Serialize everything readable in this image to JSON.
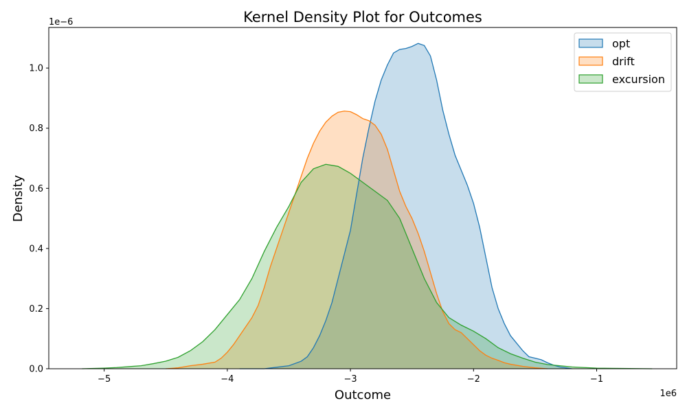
{
  "chart_data": {
    "type": "area",
    "title": "Kernel Density Plot for Outcomes",
    "xlabel": "Outcome",
    "ylabel": "Density",
    "x_offset_text": "1e6",
    "y_offset_text": "1e−6",
    "xlim": [
      -5.45,
      -0.35
    ],
    "ylim": [
      0,
      1.135
    ],
    "xticks": [
      -5,
      -4,
      -3,
      -2,
      -1
    ],
    "xtick_labels": [
      "−5",
      "−4",
      "−3",
      "−2",
      "−1"
    ],
    "yticks": [
      0.0,
      0.2,
      0.4,
      0.6,
      0.8,
      1.0
    ],
    "ytick_labels": [
      "0.0",
      "0.2",
      "0.4",
      "0.6",
      "0.8",
      "1.0"
    ],
    "grid": false,
    "legend_position": "top-right",
    "series": [
      {
        "name": "opt",
        "color": "#1f77b4",
        "points": [
          [
            -3.9,
            0.0
          ],
          [
            -3.7,
            0.0
          ],
          [
            -3.6,
            0.005
          ],
          [
            -3.5,
            0.01
          ],
          [
            -3.4,
            0.025
          ],
          [
            -3.35,
            0.04
          ],
          [
            -3.3,
            0.07
          ],
          [
            -3.25,
            0.11
          ],
          [
            -3.2,
            0.16
          ],
          [
            -3.15,
            0.22
          ],
          [
            -3.1,
            0.3
          ],
          [
            -3.05,
            0.38
          ],
          [
            -3.0,
            0.46
          ],
          [
            -2.95,
            0.58
          ],
          [
            -2.9,
            0.7
          ],
          [
            -2.85,
            0.8
          ],
          [
            -2.8,
            0.89
          ],
          [
            -2.75,
            0.96
          ],
          [
            -2.7,
            1.01
          ],
          [
            -2.65,
            1.05
          ],
          [
            -2.6,
            1.062
          ],
          [
            -2.55,
            1.065
          ],
          [
            -2.5,
            1.072
          ],
          [
            -2.45,
            1.082
          ],
          [
            -2.4,
            1.075
          ],
          [
            -2.35,
            1.04
          ],
          [
            -2.3,
            0.96
          ],
          [
            -2.25,
            0.86
          ],
          [
            -2.2,
            0.78
          ],
          [
            -2.15,
            0.71
          ],
          [
            -2.1,
            0.66
          ],
          [
            -2.05,
            0.61
          ],
          [
            -2.0,
            0.55
          ],
          [
            -1.95,
            0.47
          ],
          [
            -1.9,
            0.37
          ],
          [
            -1.85,
            0.27
          ],
          [
            -1.8,
            0.2
          ],
          [
            -1.75,
            0.15
          ],
          [
            -1.7,
            0.11
          ],
          [
            -1.65,
            0.085
          ],
          [
            -1.6,
            0.06
          ],
          [
            -1.55,
            0.04
          ],
          [
            -1.5,
            0.035
          ],
          [
            -1.45,
            0.03
          ],
          [
            -1.4,
            0.02
          ],
          [
            -1.35,
            0.012
          ],
          [
            -1.3,
            0.006
          ],
          [
            -1.25,
            0.003
          ],
          [
            -1.2,
            0.0
          ]
        ]
      },
      {
        "name": "drift",
        "color": "#ff7f0e",
        "points": [
          [
            -4.5,
            0.0
          ],
          [
            -4.4,
            0.003
          ],
          [
            -4.3,
            0.01
          ],
          [
            -4.2,
            0.015
          ],
          [
            -4.1,
            0.022
          ],
          [
            -4.05,
            0.035
          ],
          [
            -4.0,
            0.055
          ],
          [
            -3.95,
            0.08
          ],
          [
            -3.9,
            0.11
          ],
          [
            -3.85,
            0.14
          ],
          [
            -3.8,
            0.17
          ],
          [
            -3.75,
            0.21
          ],
          [
            -3.7,
            0.27
          ],
          [
            -3.65,
            0.34
          ],
          [
            -3.6,
            0.4
          ],
          [
            -3.55,
            0.46
          ],
          [
            -3.5,
            0.52
          ],
          [
            -3.45,
            0.58
          ],
          [
            -3.4,
            0.64
          ],
          [
            -3.35,
            0.7
          ],
          [
            -3.3,
            0.75
          ],
          [
            -3.25,
            0.79
          ],
          [
            -3.2,
            0.82
          ],
          [
            -3.15,
            0.84
          ],
          [
            -3.1,
            0.853
          ],
          [
            -3.05,
            0.857
          ],
          [
            -3.0,
            0.855
          ],
          [
            -2.95,
            0.845
          ],
          [
            -2.9,
            0.832
          ],
          [
            -2.85,
            0.825
          ],
          [
            -2.8,
            0.81
          ],
          [
            -2.75,
            0.78
          ],
          [
            -2.7,
            0.73
          ],
          [
            -2.65,
            0.66
          ],
          [
            -2.6,
            0.59
          ],
          [
            -2.55,
            0.54
          ],
          [
            -2.5,
            0.5
          ],
          [
            -2.45,
            0.45
          ],
          [
            -2.4,
            0.39
          ],
          [
            -2.35,
            0.32
          ],
          [
            -2.3,
            0.25
          ],
          [
            -2.25,
            0.19
          ],
          [
            -2.2,
            0.15
          ],
          [
            -2.15,
            0.13
          ],
          [
            -2.1,
            0.12
          ],
          [
            -2.05,
            0.1
          ],
          [
            -2.0,
            0.08
          ],
          [
            -1.95,
            0.06
          ],
          [
            -1.9,
            0.045
          ],
          [
            -1.85,
            0.035
          ],
          [
            -1.8,
            0.028
          ],
          [
            -1.75,
            0.02
          ],
          [
            -1.7,
            0.015
          ],
          [
            -1.6,
            0.008
          ],
          [
            -1.5,
            0.003
          ],
          [
            -1.4,
            0.0
          ]
        ]
      },
      {
        "name": "excursion",
        "color": "#2ca02c",
        "points": [
          [
            -5.18,
            0.0
          ],
          [
            -5.0,
            0.002
          ],
          [
            -4.9,
            0.004
          ],
          [
            -4.8,
            0.007
          ],
          [
            -4.7,
            0.01
          ],
          [
            -4.6,
            0.017
          ],
          [
            -4.5,
            0.025
          ],
          [
            -4.4,
            0.038
          ],
          [
            -4.3,
            0.06
          ],
          [
            -4.2,
            0.09
          ],
          [
            -4.1,
            0.13
          ],
          [
            -4.0,
            0.18
          ],
          [
            -3.9,
            0.23
          ],
          [
            -3.8,
            0.3
          ],
          [
            -3.7,
            0.39
          ],
          [
            -3.6,
            0.47
          ],
          [
            -3.5,
            0.54
          ],
          [
            -3.4,
            0.62
          ],
          [
            -3.3,
            0.665
          ],
          [
            -3.2,
            0.68
          ],
          [
            -3.1,
            0.673
          ],
          [
            -3.0,
            0.65
          ],
          [
            -2.9,
            0.62
          ],
          [
            -2.8,
            0.59
          ],
          [
            -2.7,
            0.56
          ],
          [
            -2.6,
            0.5
          ],
          [
            -2.5,
            0.4
          ],
          [
            -2.4,
            0.3
          ],
          [
            -2.3,
            0.22
          ],
          [
            -2.2,
            0.17
          ],
          [
            -2.1,
            0.145
          ],
          [
            -2.0,
            0.125
          ],
          [
            -1.9,
            0.1
          ],
          [
            -1.8,
            0.07
          ],
          [
            -1.7,
            0.05
          ],
          [
            -1.6,
            0.035
          ],
          [
            -1.5,
            0.022
          ],
          [
            -1.4,
            0.014
          ],
          [
            -1.3,
            0.01
          ],
          [
            -1.2,
            0.006
          ],
          [
            -1.1,
            0.004
          ],
          [
            -1.0,
            0.002
          ],
          [
            -0.8,
            0.001
          ],
          [
            -0.55,
            0.0
          ]
        ]
      }
    ]
  }
}
